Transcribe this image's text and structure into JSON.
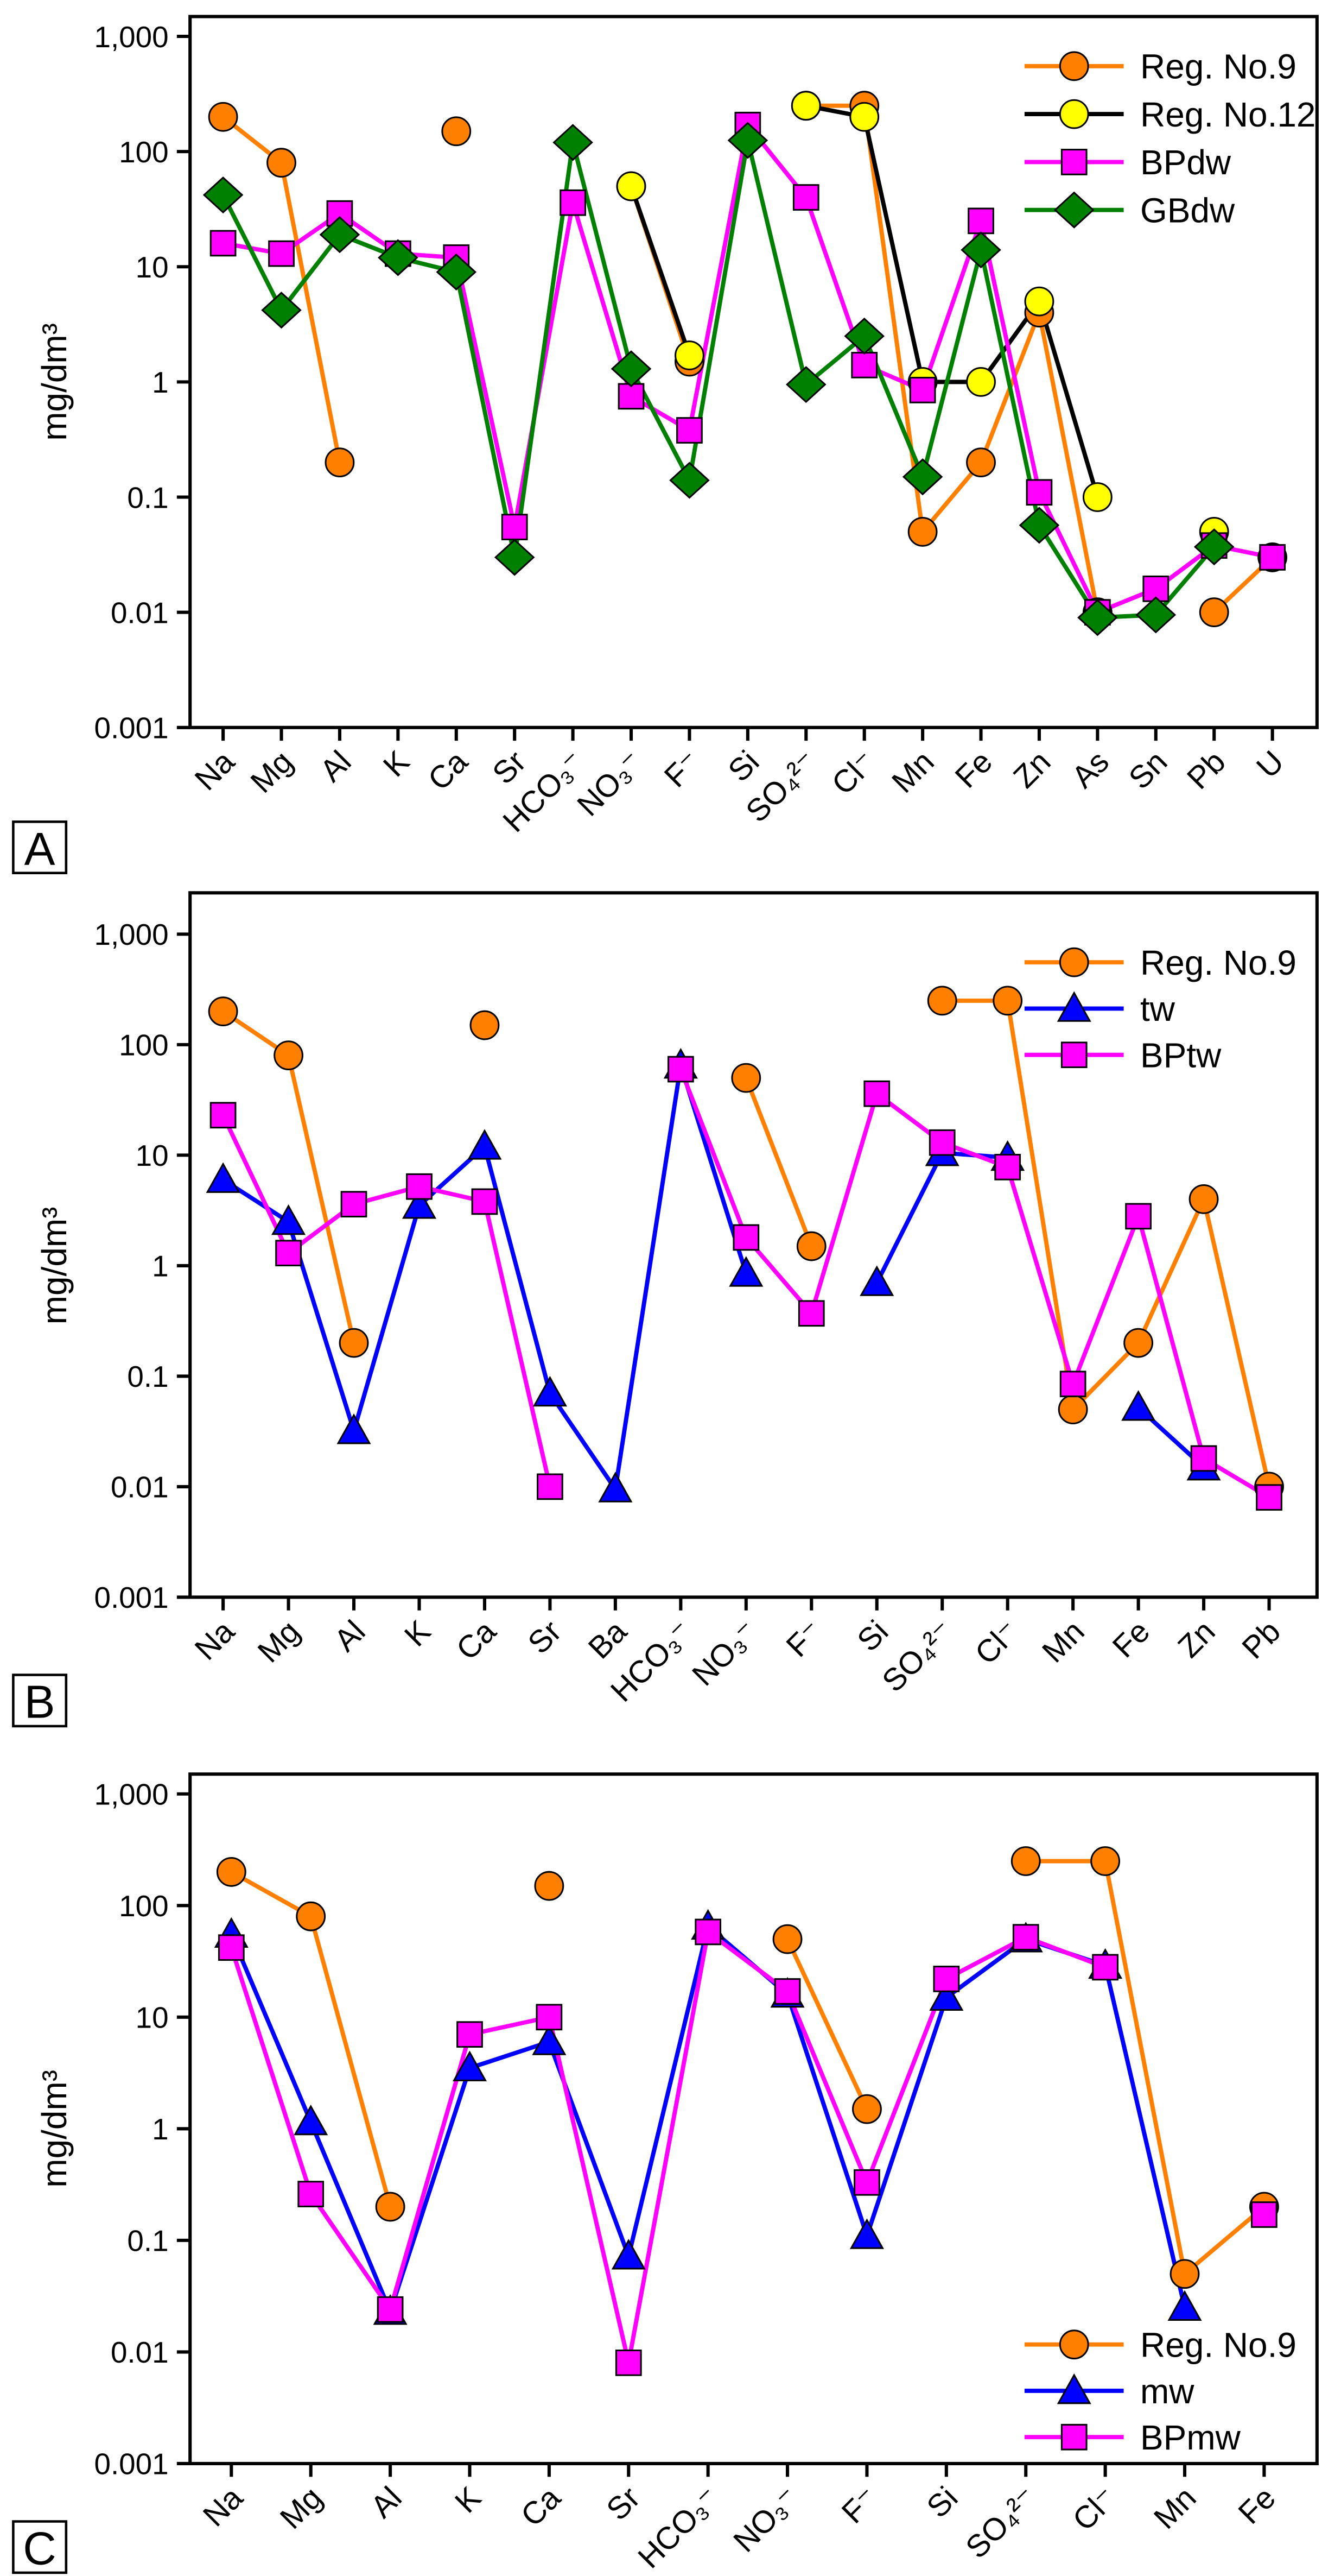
{
  "chart_data": [
    {
      "type": "line",
      "panel_label": "A",
      "ylabel": "mg/dm³",
      "yscale": "log",
      "ylim": [
        0.001,
        1000
      ],
      "y_ticks": [
        "1,000",
        "100",
        "10",
        "1",
        "0.1",
        "0.01",
        "0.001"
      ],
      "legend_position": "top-right",
      "categories": [
        "Na",
        "Mg",
        "Al",
        "K",
        "Ca",
        "Sr",
        "HCO₃⁻",
        "NO₃⁻",
        "F⁻",
        "Si",
        "SO₄²⁻",
        "Cl⁻",
        "Mn",
        "Fe",
        "Zn",
        "As",
        "Sn",
        "Pb",
        "U"
      ],
      "series": [
        {
          "name": "Reg. No.9",
          "color": "#FF7F00",
          "line": "#FF7F00",
          "marker": "circle",
          "values": [
            200,
            80,
            0.2,
            null,
            150,
            null,
            null,
            50,
            1.5,
            null,
            250,
            250,
            0.05,
            0.2,
            4,
            0.01,
            null,
            0.01,
            0.03
          ]
        },
        {
          "name": "Reg. No.12",
          "color": "#FFFF00",
          "line": "#000000",
          "marker": "circle",
          "values": [
            null,
            null,
            null,
            null,
            null,
            null,
            null,
            50,
            1.7,
            null,
            250,
            200,
            1,
            1,
            5,
            0.1,
            null,
            0.05,
            null
          ]
        },
        {
          "name": "BPdw",
          "color": "#FF00FF",
          "line": "#FF00FF",
          "marker": "square",
          "values": [
            16,
            13,
            29,
            13,
            12,
            0.055,
            36,
            0.75,
            0.38,
            170,
            40,
            1.4,
            0.85,
            25,
            0.11,
            0.01,
            0.016,
            0.038,
            0.03
          ]
        },
        {
          "name": "GBdw",
          "color": "#008000",
          "line": "#008000",
          "marker": "diamond",
          "values": [
            42,
            4.2,
            19,
            12,
            9,
            0.03,
            120,
            1.3,
            0.14,
            125,
            0.95,
            2.5,
            0.15,
            14,
            0.057,
            0.009,
            0.0095,
            0.037,
            null
          ]
        }
      ]
    },
    {
      "type": "line",
      "panel_label": "B",
      "ylabel": "mg/dm³",
      "yscale": "log",
      "ylim": [
        0.001,
        1000
      ],
      "y_ticks": [
        "1,000",
        "100",
        "10",
        "1",
        "0.1",
        "0.01",
        "0.001"
      ],
      "legend_position": "top-right",
      "categories": [
        "Na",
        "Mg",
        "Al",
        "K",
        "Ca",
        "Sr",
        "Ba",
        "HCO₃⁻",
        "NO₃⁻",
        "F⁻",
        "Si",
        "SO₄²⁻",
        "Cl⁻",
        "Mn",
        "Fe",
        "Zn",
        "Pb"
      ],
      "series": [
        {
          "name": "Reg. No.9",
          "color": "#FF7F00",
          "line": "#FF7F00",
          "marker": "circle",
          "values": [
            200,
            80,
            0.2,
            null,
            150,
            null,
            null,
            null,
            50,
            1.5,
            null,
            250,
            250,
            0.05,
            0.2,
            4,
            0.01
          ]
        },
        {
          "name": "tw",
          "color": "#0000FF",
          "line": "#0000FF",
          "marker": "triangle",
          "values": [
            6,
            2.5,
            0.032,
            3.5,
            12,
            0.07,
            0.0095,
            65,
            0.85,
            null,
            0.7,
            10.5,
            9.5,
            null,
            0.052,
            0.015,
            null
          ]
        },
        {
          "name": "BPtw",
          "color": "#FF00FF",
          "line": "#FF00FF",
          "marker": "square",
          "values": [
            23,
            1.3,
            3.6,
            5.2,
            3.8,
            0.01,
            null,
            60,
            1.8,
            0.37,
            36,
            13,
            7.8,
            0.085,
            2.8,
            0.018,
            0.008
          ]
        }
      ]
    },
    {
      "type": "line",
      "panel_label": "C",
      "ylabel": "mg/dm³",
      "yscale": "log",
      "ylim": [
        0.001,
        1000
      ],
      "y_ticks": [
        "1,000",
        "100",
        "10",
        "1",
        "0.1",
        "0.01",
        "0.001"
      ],
      "legend_position": "bottom-right",
      "categories": [
        "Na",
        "Mg",
        "Al",
        "K",
        "Ca",
        "Sr",
        "HCO₃⁻",
        "NO₃⁻",
        "F⁻",
        "Si",
        "SO₄²⁻",
        "Cl⁻",
        "Mn",
        "Fe"
      ],
      "series": [
        {
          "name": "Reg. No.9",
          "color": "#FF7F00",
          "line": "#FF7F00",
          "marker": "circle",
          "values": [
            200,
            80,
            0.2,
            null,
            150,
            null,
            null,
            50,
            1.5,
            null,
            250,
            250,
            0.05,
            0.2
          ]
        },
        {
          "name": "mw",
          "color": "#0000FF",
          "line": "#0000FF",
          "marker": "triangle",
          "values": [
            55,
            1.15,
            0.023,
            3.5,
            6,
            0.072,
            65,
            16,
            0.11,
            15,
            50,
            29,
            0.025,
            null
          ]
        },
        {
          "name": "BPmw",
          "color": "#FF00FF",
          "line": "#FF00FF",
          "marker": "square",
          "values": [
            42,
            0.26,
            0.024,
            7,
            10,
            0.008,
            58,
            17,
            0.33,
            22,
            52,
            28,
            null,
            0.17
          ]
        }
      ]
    }
  ]
}
